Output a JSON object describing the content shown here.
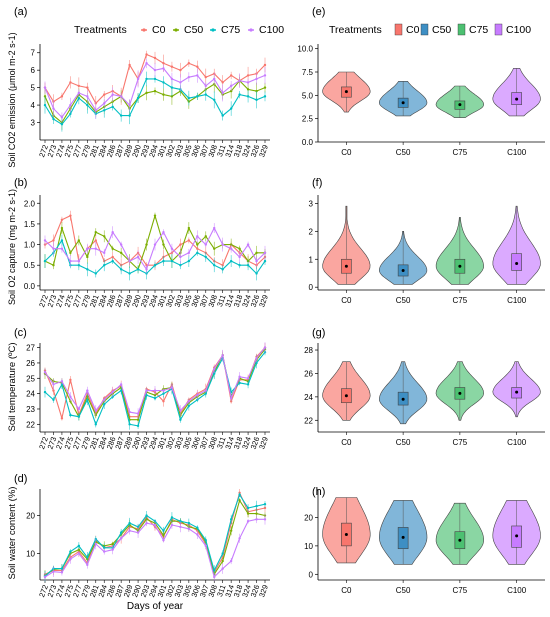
{
  "colors": {
    "C0": "#F8766D",
    "C50": "#7CAE00",
    "C75": "#00BFC4",
    "C100": "#C77CFF",
    "violin_fill": [
      "#F8766D",
      "#3E8FC4",
      "#4CC071",
      "#C77CFF"
    ]
  },
  "left_legend": {
    "title": "Treatments",
    "entries": [
      "C0",
      "C50",
      "C75",
      "C100"
    ]
  },
  "right_legend": {
    "title": "Treatments",
    "entries": [
      "C0",
      "C50",
      "C75",
      "C100"
    ]
  },
  "x_axis_title": "Days of year",
  "chart_data": [
    {
      "panel": "(a)",
      "type": "line",
      "ylabel": "Soil CO2 emission (μmol m-2 s-1)",
      "ylim": [
        2,
        7.5
      ],
      "yticks": [
        3,
        4,
        5,
        6,
        7
      ],
      "x": [
        "272",
        "273",
        "274",
        "275",
        "277",
        "279",
        "281",
        "284",
        "286",
        "287",
        "289",
        "290",
        "293",
        "294",
        "301",
        "302",
        "303",
        "305",
        "306",
        "307",
        "308",
        "311",
        "314",
        "318",
        "324",
        "326",
        "329"
      ],
      "series": [
        {
          "name": "C0",
          "values": [
            5.0,
            4.2,
            4.5,
            5.3,
            5.1,
            5.0,
            4.1,
            4.6,
            4.8,
            4.5,
            6.3,
            5.5,
            6.9,
            6.7,
            6.4,
            6.2,
            6.0,
            6.4,
            6.2,
            5.6,
            5.8,
            5.3,
            5.7,
            5.4,
            5.7,
            5.8,
            6.3
          ]
        },
        {
          "name": "C50",
          "values": [
            4.5,
            3.4,
            3.0,
            3.8,
            4.6,
            4.2,
            3.6,
            3.9,
            4.2,
            4.5,
            3.8,
            4.4,
            4.7,
            4.8,
            4.6,
            4.5,
            4.8,
            4.2,
            4.5,
            4.9,
            5.2,
            4.6,
            4.8,
            5.4,
            4.9,
            4.8,
            5.0
          ]
        },
        {
          "name": "C75",
          "values": [
            4.0,
            3.2,
            2.9,
            3.5,
            4.4,
            4.0,
            3.5,
            3.7,
            3.9,
            3.4,
            3.4,
            4.4,
            5.5,
            5.5,
            5.3,
            5.0,
            4.9,
            4.4,
            4.5,
            4.6,
            4.3,
            3.4,
            3.8,
            4.6,
            4.5,
            4.3,
            4.5
          ]
        },
        {
          "name": "C100",
          "values": [
            5.0,
            3.8,
            3.3,
            4.0,
            4.7,
            4.5,
            3.7,
            4.1,
            4.6,
            4.5,
            4.0,
            5.5,
            6.4,
            6.0,
            6.1,
            5.5,
            5.3,
            5.6,
            5.7,
            5.1,
            5.5,
            4.7,
            5.1,
            5.4,
            5.3,
            5.5,
            5.7
          ]
        }
      ]
    },
    {
      "panel": "(b)",
      "type": "line",
      "ylabel": "Soil O2 capture (mg m-2 s-1)",
      "ylim": [
        -0.1,
        2.2
      ],
      "yticks": [
        0.0,
        0.5,
        1.0,
        1.5,
        2.0
      ],
      "x": [
        "272",
        "273",
        "274",
        "275",
        "277",
        "279",
        "281",
        "284",
        "286",
        "287",
        "289",
        "290",
        "293",
        "294",
        "301",
        "302",
        "303",
        "305",
        "306",
        "307",
        "308",
        "311",
        "314",
        "318",
        "324",
        "326",
        "329"
      ],
      "series": [
        {
          "name": "C0",
          "values": [
            1.0,
            1.1,
            1.6,
            1.7,
            0.6,
            0.9,
            1.1,
            0.6,
            0.7,
            0.5,
            0.6,
            0.8,
            0.5,
            0.5,
            0.7,
            0.8,
            1.0,
            1.1,
            0.9,
            0.8,
            0.6,
            0.5,
            1.0,
            0.8,
            0.6,
            0.5,
            0.7
          ]
        },
        {
          "name": "C50",
          "values": [
            0.6,
            0.5,
            1.4,
            0.8,
            1.1,
            0.7,
            1.3,
            1.2,
            0.9,
            0.8,
            0.6,
            0.4,
            1.0,
            1.7,
            1.0,
            0.6,
            0.8,
            1.4,
            1.0,
            1.2,
            0.9,
            1.0,
            1.0,
            0.9,
            0.6,
            0.8,
            0.8
          ]
        },
        {
          "name": "C75",
          "values": [
            0.6,
            0.8,
            1.1,
            0.5,
            0.5,
            0.4,
            0.3,
            0.5,
            0.6,
            0.4,
            0.3,
            0.4,
            0.3,
            0.5,
            0.6,
            0.6,
            0.5,
            0.6,
            0.8,
            0.7,
            0.5,
            0.4,
            0.6,
            0.5,
            0.5,
            0.3,
            0.6
          ]
        },
        {
          "name": "C100",
          "values": [
            1.1,
            0.9,
            0.9,
            0.6,
            0.6,
            0.9,
            0.9,
            0.8,
            1.3,
            1.0,
            0.6,
            0.7,
            0.4,
            1.0,
            1.3,
            0.9,
            0.7,
            0.8,
            1.2,
            1.0,
            1.4,
            1.0,
            0.9,
            0.7,
            1.0,
            0.6,
            0.8
          ]
        }
      ]
    },
    {
      "panel": "(c)",
      "type": "line",
      "ylabel": "Soil temperature (ºC)",
      "ylim": [
        21.5,
        27.3
      ],
      "yticks": [
        22,
        23,
        24,
        25,
        26,
        27
      ],
      "x": [
        "272",
        "273",
        "274",
        "275",
        "277",
        "279",
        "281",
        "284",
        "286",
        "287",
        "289",
        "290",
        "293",
        "294",
        "301",
        "302",
        "303",
        "305",
        "306",
        "307",
        "308",
        "311",
        "314",
        "318",
        "324",
        "326",
        "329"
      ],
      "series": [
        {
          "name": "C0",
          "values": [
            25.5,
            24.2,
            22.4,
            24.9,
            22.6,
            24.0,
            22.7,
            23.7,
            24.2,
            24.5,
            22.5,
            22.5,
            24.3,
            24.1,
            23.5,
            24.6,
            22.7,
            23.6,
            24.0,
            24.3,
            25.7,
            26.5,
            23.5,
            24.9,
            24.9,
            26.4,
            27.0
          ]
        },
        {
          "name": "C50",
          "values": [
            25.3,
            24.8,
            24.7,
            23.5,
            22.5,
            23.8,
            22.6,
            23.5,
            24.0,
            24.4,
            22.3,
            22.3,
            24.1,
            23.9,
            24.3,
            24.4,
            22.6,
            23.4,
            23.8,
            24.1,
            25.4,
            26.5,
            23.8,
            25.0,
            24.8,
            26.2,
            26.9
          ]
        },
        {
          "name": "C75",
          "values": [
            24.1,
            23.6,
            24.6,
            22.6,
            22.5,
            23.6,
            22.0,
            23.3,
            23.8,
            24.2,
            22.0,
            21.9,
            23.9,
            23.7,
            24.0,
            24.3,
            22.3,
            23.2,
            23.6,
            24.0,
            25.3,
            26.3,
            24.1,
            24.7,
            24.6,
            26.0,
            26.7
          ]
        },
        {
          "name": "C100",
          "values": [
            25.4,
            24.6,
            24.8,
            23.8,
            23.0,
            24.2,
            22.9,
            23.6,
            24.1,
            24.6,
            22.8,
            22.7,
            24.2,
            24.2,
            24.2,
            24.4,
            22.9,
            23.5,
            23.9,
            24.2,
            25.6,
            26.5,
            23.7,
            25.1,
            25.0,
            26.3,
            27.0
          ]
        }
      ]
    },
    {
      "panel": "(d)",
      "type": "line",
      "ylabel": "Soil water content (%)",
      "ylim": [
        3,
        27
      ],
      "yticks": [
        10,
        20
      ],
      "x": [
        "272",
        "273",
        "274",
        "275",
        "277",
        "279",
        "281",
        "284",
        "286",
        "287",
        "289",
        "290",
        "293",
        "294",
        "301",
        "302",
        "303",
        "305",
        "306",
        "307",
        "308",
        "311",
        "314",
        "318",
        "324",
        "326",
        "329"
      ],
      "series": [
        {
          "name": "C0",
          "values": [
            4.5,
            5.5,
            5.5,
            9.0,
            10.5,
            7.5,
            13.5,
            11.5,
            12.0,
            14.0,
            17.0,
            16.5,
            19.5,
            17.0,
            14.5,
            19.0,
            18.0,
            17.5,
            16.0,
            12.5,
            5.0,
            9.0,
            18.0,
            26.0,
            21.0,
            21.5,
            22.0
          ]
        },
        {
          "name": "C50",
          "values": [
            4.2,
            5.8,
            6.0,
            10.0,
            11.0,
            8.5,
            13.0,
            12.0,
            12.5,
            15.0,
            17.5,
            16.0,
            19.0,
            18.0,
            14.8,
            18.5,
            18.5,
            17.0,
            16.5,
            13.0,
            4.5,
            8.0,
            16.0,
            24.0,
            20.5,
            20.5,
            20.0
          ]
        },
        {
          "name": "C75",
          "values": [
            4.0,
            6.0,
            6.0,
            10.5,
            12.0,
            9.0,
            13.8,
            11.5,
            11.5,
            15.5,
            18.0,
            17.0,
            20.0,
            18.5,
            16.0,
            19.5,
            18.5,
            18.0,
            16.8,
            13.5,
            5.5,
            10.0,
            19.0,
            25.5,
            22.0,
            22.5,
            23.0
          ]
        },
        {
          "name": "C100",
          "values": [
            3.8,
            5.2,
            5.0,
            8.5,
            10.0,
            7.0,
            12.5,
            10.5,
            11.0,
            14.0,
            16.0,
            15.5,
            18.0,
            17.5,
            13.5,
            17.5,
            17.0,
            16.5,
            15.0,
            12.0,
            3.8,
            6.0,
            8.0,
            14.0,
            18.5,
            19.0,
            19.0
          ]
        }
      ]
    },
    {
      "panel": "(e)",
      "type": "violin",
      "categories": [
        "C0",
        "C50",
        "C75",
        "C100"
      ],
      "ylim": [
        0,
        10.5
      ],
      "yticks": [
        "0.0",
        "2.5",
        "5.0",
        "7.5",
        "10.0"
      ],
      "medians": [
        5.4,
        4.2,
        4.0,
        4.6
      ],
      "q1": [
        4.8,
        3.7,
        3.5,
        4.0
      ],
      "q3": [
        5.9,
        4.7,
        4.4,
        5.3
      ],
      "mins": [
        3.2,
        2.8,
        2.6,
        2.8
      ],
      "maxs": [
        7.5,
        6.5,
        6.0,
        7.9
      ]
    },
    {
      "panel": "(f)",
      "type": "violin",
      "categories": [
        "C0",
        "C50",
        "C75",
        "C100"
      ],
      "ylim": [
        -0.1,
        3.3
      ],
      "yticks": [
        "0",
        "1",
        "2",
        "3"
      ],
      "medians": [
        0.75,
        0.6,
        0.75,
        0.85
      ],
      "q1": [
        0.5,
        0.4,
        0.5,
        0.6
      ],
      "q3": [
        1.0,
        0.8,
        1.0,
        1.2
      ],
      "mins": [
        0.1,
        0.1,
        0.1,
        0.1
      ],
      "maxs": [
        2.9,
        2.0,
        2.5,
        2.9
      ]
    },
    {
      "panel": "(g)",
      "type": "violin",
      "categories": [
        "C0",
        "C50",
        "C75",
        "C100"
      ],
      "ylim": [
        21,
        28.6
      ],
      "yticks": [
        "22",
        "24",
        "26",
        "28"
      ],
      "medians": [
        24.1,
        23.8,
        24.3,
        24.4
      ],
      "q1": [
        23.5,
        23.3,
        23.8,
        23.9
      ],
      "q3": [
        24.7,
        24.4,
        24.8,
        24.8
      ],
      "mins": [
        22.0,
        21.7,
        22.0,
        22.3
      ],
      "maxs": [
        27.0,
        27.0,
        27.0,
        27.0
      ]
    },
    {
      "panel": "(h)",
      "type": "violin",
      "categories": [
        "C0",
        "C50",
        "C75",
        "C100"
      ],
      "ylim": [
        -2,
        30
      ],
      "yticks": [
        "0",
        "10",
        "20"
      ],
      "medians": [
        14.0,
        13.0,
        12.0,
        13.5
      ],
      "q1": [
        10.0,
        9.0,
        9.0,
        9.5
      ],
      "q3": [
        18.0,
        16.5,
        15.0,
        17.0
      ],
      "mins": [
        4.0,
        3.5,
        3.5,
        3.5
      ],
      "maxs": [
        27.0,
        26.0,
        25.0,
        26.0
      ]
    }
  ]
}
